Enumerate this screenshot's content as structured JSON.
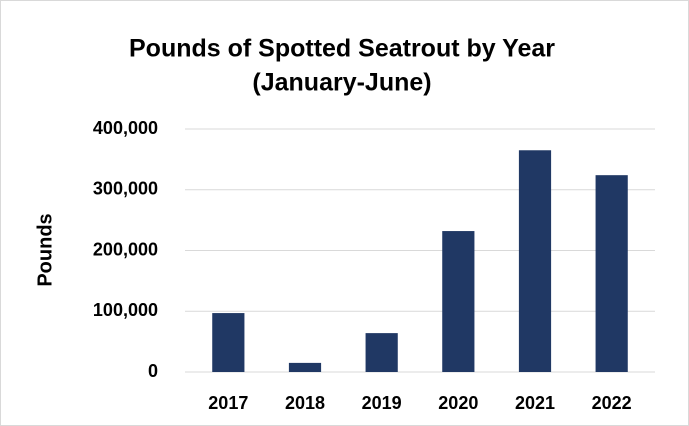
{
  "chart_data": {
    "type": "bar",
    "title": "Pounds of Spotted Seatrout by Year",
    "subtitle": "(January-June)",
    "y_label": "Pounds",
    "categories": [
      "2017",
      "2018",
      "2019",
      "2020",
      "2021",
      "2022"
    ],
    "values": [
      97000,
      15000,
      64000,
      232000,
      365000,
      324000
    ],
    "color": "#203864",
    "ylim": [
      0,
      400000
    ],
    "yticks": [
      0,
      {
        "value": 100000,
        "label": "100,000"
      },
      {
        "value": 200000,
        "label": "200,000"
      },
      {
        "value": 300000,
        "label": "300,000"
      },
      {
        "value": 400000,
        "label": "400,000"
      }
    ],
    "grid": true
  }
}
